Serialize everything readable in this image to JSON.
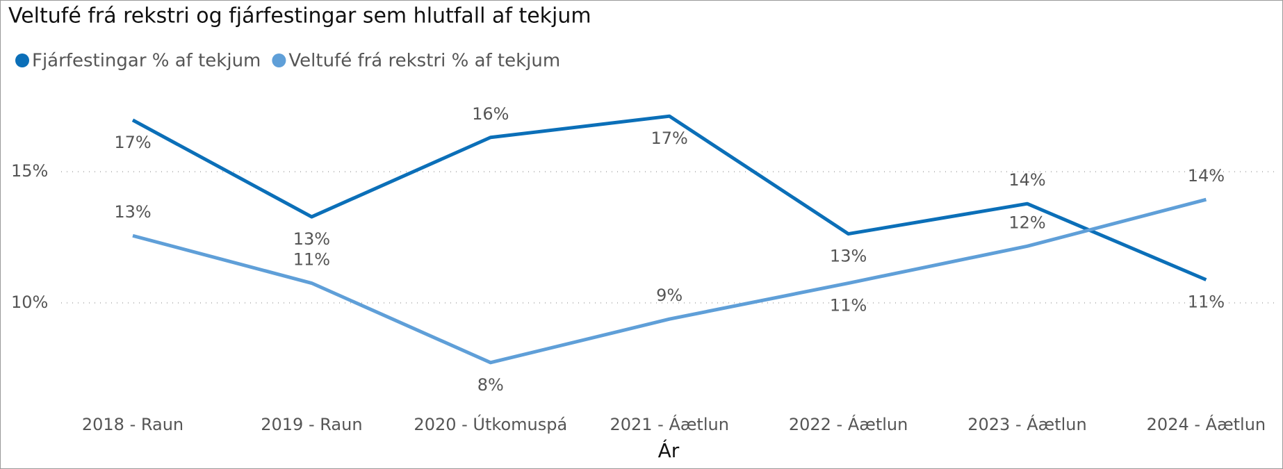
{
  "chart_data": {
    "type": "line",
    "title": "Veltufé frá rekstri og fjárfestingar sem hlutfall af tekjum",
    "x_label": "Ár",
    "categories": [
      "2018 - Raun",
      "2019 - Raun",
      "2020 - Útkomuspá",
      "2021 - Áætlun",
      "2022 - Áætlun",
      "2023 - Áætlun",
      "2024 - Áætlun"
    ],
    "series": [
      {
        "name": "Fjárfestingar % af tekjum",
        "color": "#0b6fb8",
        "values": [
          16.97,
          13.28,
          16.31,
          17.12,
          12.63,
          13.78,
          10.88
        ],
        "value_labels": [
          "17%",
          "13%",
          "16%",
          "17%",
          "13%",
          "14%",
          "11%"
        ]
      },
      {
        "name": "Veltufé frá rekstri % af tekjum",
        "color": "#5f9fd8",
        "values": [
          12.56,
          10.75,
          7.72,
          9.38,
          10.75,
          12.16,
          13.94
        ],
        "value_labels": [
          "13%",
          "11%",
          "8%",
          "9%",
          "11%",
          "12%",
          "14%"
        ]
      }
    ],
    "ylim": [
      7,
      18
    ],
    "yticks": [
      {
        "value": 10,
        "label": "10%"
      },
      {
        "value": 15,
        "label": "15%"
      }
    ],
    "grid": true,
    "legend": "top-left"
  }
}
